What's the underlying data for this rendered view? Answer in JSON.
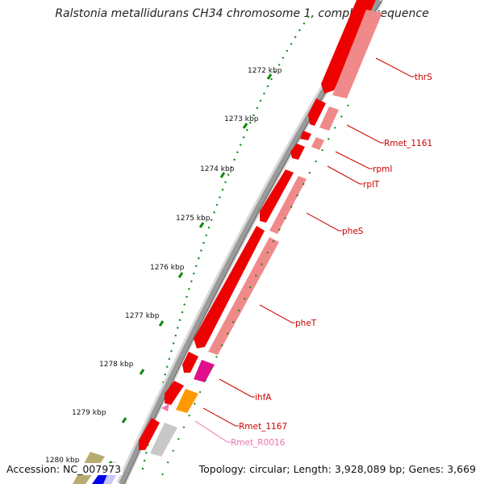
{
  "title": "Ralstonia metallidurans CH34 chromosome 1, complete sequence",
  "accession": "Accession: NC_007973",
  "summary": "Topology: circular; Length: 3,928,089 bp; Genes: 3,669",
  "ruler": {
    "unit": "kbp",
    "ticks": [
      "1272 kbp",
      "1273 kbp",
      "1274 kbp",
      "1275 kbp",
      "1276 kbp",
      "1277 kbp",
      "1278 kbp",
      "1279 kbp",
      "1280 kbp"
    ]
  },
  "colors": {
    "gene_forward": "#ee0000",
    "gene_reverse_track": "#f08a8a",
    "ihfA": "#e0108a",
    "Rmet_1167": "#ff9900",
    "Rmet_R0016": "#c8c8c8",
    "label_default": "#cc0000",
    "label_Rmet_R0016": "#f070b0",
    "ruler_ticks": "#118811",
    "backbone": "#9a9a9a"
  },
  "genes": [
    {
      "name": "thrS"
    },
    {
      "name": "Rmet_1161"
    },
    {
      "name": "rpmI"
    },
    {
      "name": "rplT"
    },
    {
      "name": "pheS"
    },
    {
      "name": "pheT"
    },
    {
      "name": "ihfA"
    },
    {
      "name": "Rmet_1167"
    },
    {
      "name": "Rmet_R0016"
    }
  ]
}
